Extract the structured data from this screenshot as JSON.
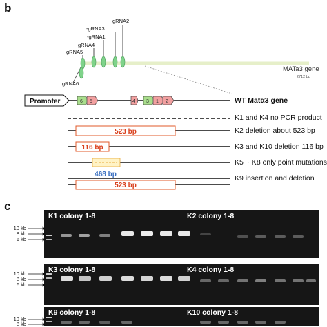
{
  "panel_b": {
    "letter": "b",
    "grnas": [
      "gRNA2",
      "-gRNA3",
      "-gRNA1",
      "gRNA4",
      "gRNA5",
      "gRNA6"
    ],
    "gene_name": "MATa3 gene",
    "gene_size": "2712 bp",
    "promoter": "Promoter",
    "wt_label": "WT Matα3 gene",
    "rows": [
      {
        "label": "K1 and K4 no PCR product",
        "box": ""
      },
      {
        "label": "K2 deletion about 523 bp",
        "box": "523 bp"
      },
      {
        "label": "K3 and K10 deletion 116 bp",
        "box": "116 bp"
      },
      {
        "label": "K5 ~ K8 only point mutations",
        "box": ""
      },
      {
        "label": "K9 insertion and deletion",
        "box": "523 bp",
        "above": "468 bp"
      }
    ],
    "exon_labels": [
      "6",
      "5",
      "4",
      "3",
      "1",
      "2"
    ]
  },
  "panel_c": {
    "letter": "c",
    "ladder": [
      "10 kb",
      "8 kb",
      "6 kb"
    ],
    "gels": [
      {
        "left_title": "K1 colony 1-8",
        "right_title": "K2 colony 1-8"
      },
      {
        "left_title": "K3 colony 1-8",
        "right_title": "K4 colony 1-8"
      },
      {
        "left_title": "K9 colony 1-8",
        "right_title": "K10 colony 1-8"
      }
    ]
  }
}
